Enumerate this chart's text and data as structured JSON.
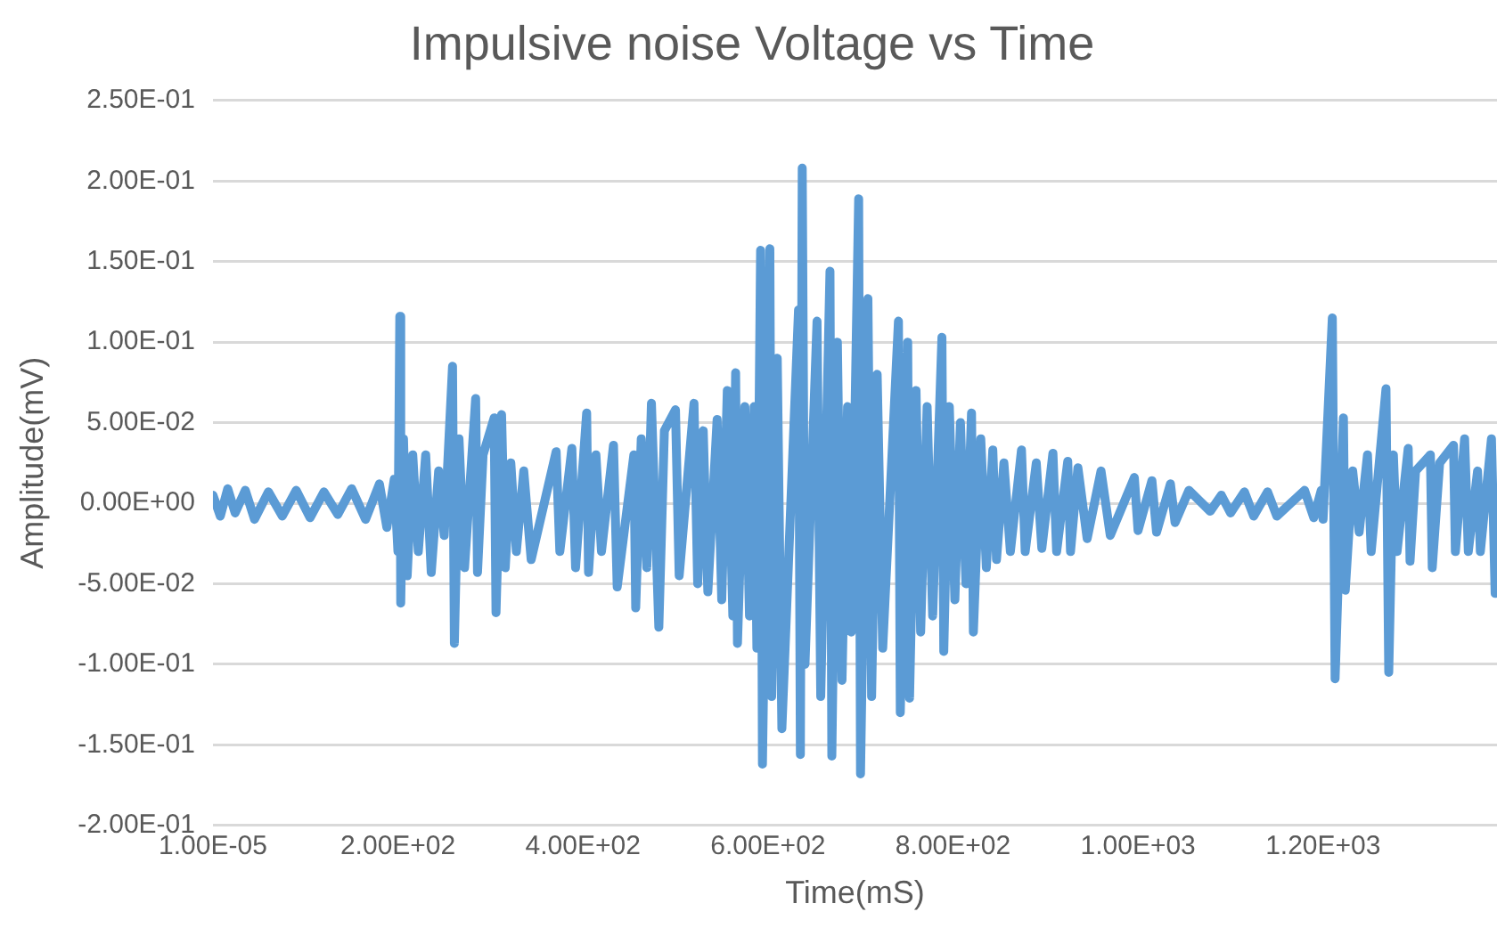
{
  "chart_data": {
    "type": "line",
    "title": "Impulsive noise Voltage vs Time",
    "xlabel": "Time(mS)",
    "ylabel": "Amplitude(mV)",
    "xlim": [
      1e-05,
      1388
    ],
    "ylim": [
      -0.2,
      0.25
    ],
    "xticks": [
      {
        "value": 1e-05,
        "label": "1.00E-05"
      },
      {
        "value": 200,
        "label": "2.00E+02"
      },
      {
        "value": 400,
        "label": "4.00E+02"
      },
      {
        "value": 600,
        "label": "6.00E+02"
      },
      {
        "value": 800,
        "label": "8.00E+02"
      },
      {
        "value": 1000,
        "label": "1.00E+03"
      },
      {
        "value": 1200,
        "label": "1.20E+03"
      }
    ],
    "yticks": [
      {
        "value": -0.2,
        "label": "-2.00E-01"
      },
      {
        "value": -0.15,
        "label": "-1.50E-01"
      },
      {
        "value": -0.1,
        "label": "-1.00E-01"
      },
      {
        "value": -0.05,
        "label": "-5.00E-02"
      },
      {
        "value": 0,
        "label": "0.00E+00"
      },
      {
        "value": 0.05,
        "label": "5.00E-02"
      },
      {
        "value": 0.1,
        "label": "1.00E-01"
      },
      {
        "value": 0.15,
        "label": "1.50E-01"
      },
      {
        "value": 0.2,
        "label": "2.00E-01"
      },
      {
        "value": 0.25,
        "label": "2.50E-01"
      }
    ],
    "grid": "y",
    "marker": "none",
    "series": [
      {
        "color": "#5b9bd5",
        "x": [
          1e-05,
          8,
          16,
          24,
          35,
          45,
          60,
          75,
          90,
          105,
          120,
          135,
          150,
          165,
          180,
          188,
          196,
          200,
          202,
          203,
          206,
          210,
          216,
          222,
          230,
          236,
          244,
          250,
          259,
          261,
          266,
          272,
          284,
          286,
          292,
          304,
          306,
          312,
          316,
          322,
          328,
          336,
          344,
          371,
          375,
          388,
          392,
          404,
          406,
          414,
          420,
          433,
          437,
          455,
          457,
          463,
          469,
          474,
          482,
          488,
          500,
          504,
          520,
          524,
          530,
          535,
          545,
          550,
          556,
          562,
          565,
          567,
          575,
          580,
          585,
          588,
          592,
          594,
          602,
          604,
          610,
          615,
          633,
          635,
          637,
          640,
          653,
          657,
          667,
          669,
          675,
          680,
          686,
          690,
          698,
          700,
          708,
          712,
          718,
          724,
          741,
          743,
          751,
          753,
          760,
          765,
          772,
          778,
          788,
          790,
          796,
          802,
          808,
          814,
          820,
          822,
          830,
          836,
          843,
          847,
          855,
          862,
          874,
          878,
          890,
          896,
          908,
          912,
          924,
          927,
          935,
          945,
          960,
          970,
          996,
          1000,
          1015,
          1020,
          1035,
          1040,
          1055,
          1078,
          1090,
          1100,
          1115,
          1125,
          1140,
          1150,
          1180,
          1190,
          1198,
          1200,
          1210,
          1213,
          1222,
          1224,
          1232,
          1239,
          1248,
          1252,
          1268,
          1271,
          1276,
          1280,
          1292,
          1294,
          1300,
          1316,
          1318,
          1326,
          1341,
          1343,
          1353,
          1357,
          1367,
          1370,
          1382,
          1386
        ],
        "values": [
          0.005,
          -0.008,
          0.009,
          -0.006,
          0.008,
          -0.01,
          0.007,
          -0.008,
          0.008,
          -0.009,
          0.007,
          -0.007,
          0.009,
          -0.01,
          0.012,
          -0.015,
          0.015,
          -0.03,
          0.116,
          -0.062,
          0.04,
          -0.045,
          0.03,
          -0.03,
          0.03,
          -0.043,
          0.02,
          -0.02,
          0.085,
          -0.087,
          0.04,
          -0.04,
          0.065,
          -0.043,
          0.03,
          0.053,
          -0.068,
          0.055,
          -0.04,
          0.025,
          -0.03,
          0.02,
          -0.035,
          0.032,
          -0.03,
          0.034,
          -0.04,
          0.056,
          -0.043,
          0.03,
          -0.03,
          0.036,
          -0.052,
          0.03,
          -0.065,
          0.04,
          -0.04,
          0.062,
          -0.077,
          0.045,
          0.058,
          -0.045,
          0.062,
          -0.05,
          0.045,
          -0.055,
          0.052,
          -0.06,
          0.07,
          -0.07,
          0.081,
          -0.087,
          0.06,
          -0.07,
          0.06,
          -0.09,
          0.157,
          -0.162,
          0.158,
          -0.12,
          0.09,
          -0.14,
          0.12,
          -0.156,
          0.208,
          -0.1,
          0.113,
          -0.12,
          0.144,
          -0.157,
          0.1,
          -0.11,
          0.06,
          -0.08,
          0.189,
          -0.168,
          0.127,
          -0.12,
          0.08,
          -0.09,
          0.113,
          -0.13,
          0.1,
          -0.121,
          0.07,
          -0.08,
          0.06,
          -0.07,
          0.103,
          -0.092,
          0.06,
          -0.06,
          0.05,
          -0.05,
          0.056,
          -0.08,
          0.04,
          -0.04,
          0.033,
          -0.035,
          0.025,
          -0.03,
          0.033,
          -0.03,
          0.025,
          -0.028,
          0.031,
          -0.03,
          0.026,
          -0.03,
          0.022,
          -0.022,
          0.02,
          -0.02,
          0.016,
          -0.017,
          0.014,
          -0.018,
          0.012,
          -0.012,
          0.008,
          -0.005,
          0.005,
          -0.006,
          0.007,
          -0.008,
          0.007,
          -0.008,
          0.008,
          -0.009,
          0.008,
          -0.01,
          0.115,
          -0.109,
          0.053,
          -0.054,
          0.02,
          -0.018,
          0.03,
          -0.03,
          0.071,
          -0.105,
          0.03,
          -0.03,
          0.034,
          -0.036,
          0.02,
          0.03,
          -0.04,
          0.025,
          0.036,
          -0.03,
          0.04,
          -0.03,
          0.02,
          -0.03,
          0.04,
          -0.056
        ]
      }
    ]
  }
}
